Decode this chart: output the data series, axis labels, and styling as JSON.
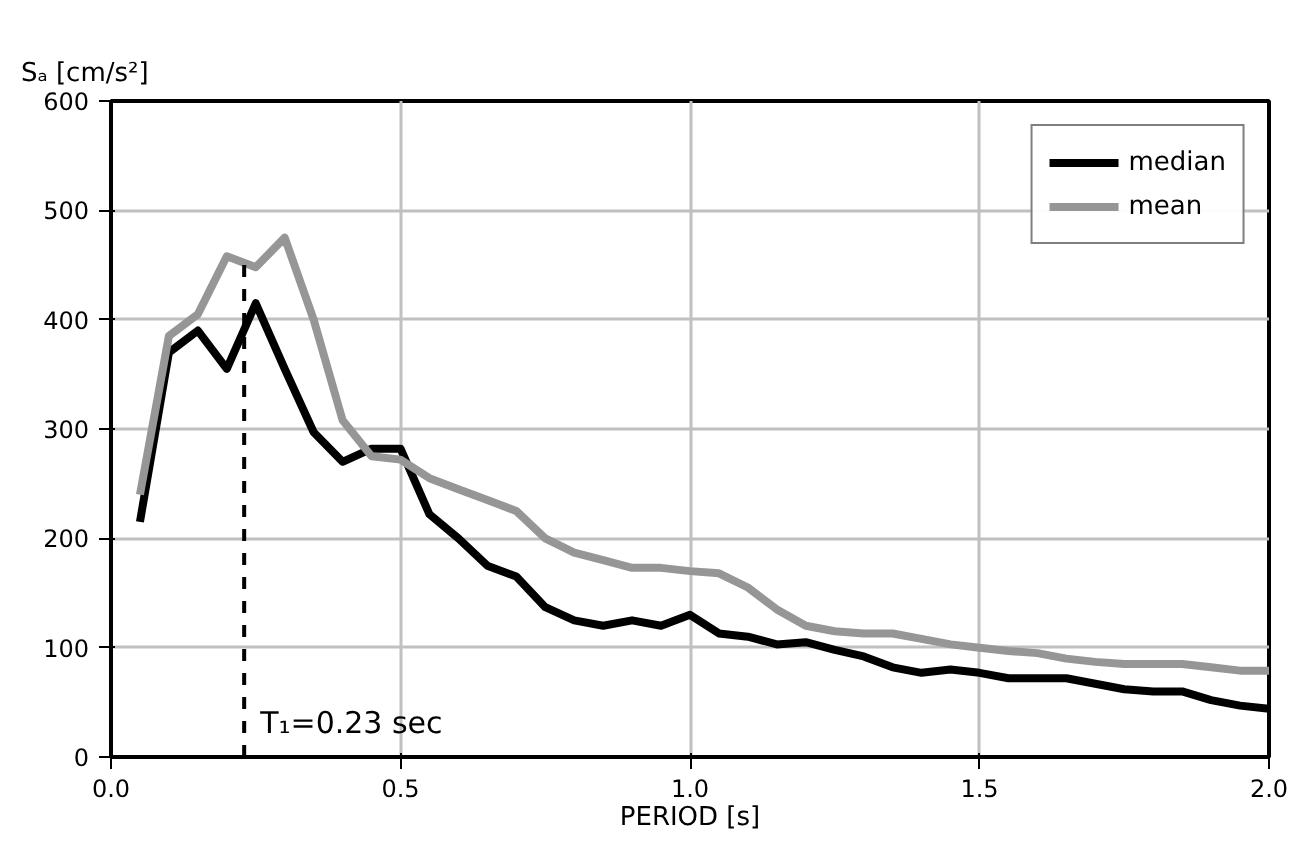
{
  "chart_data": {
    "type": "line",
    "ylabel": "Sₐ [cm/s²]",
    "xlabel": "PERIOD [s]",
    "x": [
      0.05,
      0.1,
      0.15,
      0.2,
      0.25,
      0.3,
      0.35,
      0.4,
      0.45,
      0.5,
      0.55,
      0.6,
      0.65,
      0.7,
      0.75,
      0.8,
      0.85,
      0.9,
      0.95,
      1.0,
      1.05,
      1.1,
      1.15,
      1.2,
      1.25,
      1.3,
      1.35,
      1.4,
      1.45,
      1.5,
      1.55,
      1.6,
      1.65,
      1.7,
      1.75,
      1.8,
      1.85,
      1.9,
      1.95,
      2.0
    ],
    "series": [
      {
        "name": "median",
        "color": "#000000",
        "values": [
          215,
          370,
          390,
          355,
          415,
          355,
          297,
          270,
          282,
          282,
          222,
          200,
          175,
          165,
          137,
          125,
          120,
          125,
          120,
          130,
          113,
          110,
          103,
          105,
          98,
          92,
          82,
          77,
          80,
          77,
          72,
          72,
          72,
          67,
          62,
          60,
          60,
          52,
          47,
          44
        ]
      },
      {
        "name": "mean",
        "color": "#969696",
        "values": [
          240,
          385,
          405,
          458,
          448,
          475,
          400,
          308,
          275,
          272,
          255,
          245,
          235,
          225,
          200,
          187,
          180,
          173,
          173,
          170,
          168,
          155,
          135,
          120,
          115,
          113,
          113,
          108,
          103,
          100,
          97,
          95,
          90,
          87,
          85,
          85,
          85,
          82,
          79,
          79
        ]
      }
    ],
    "xlim": [
      0,
      2.0
    ],
    "ylim": [
      0,
      600
    ],
    "xticks": [
      {
        "value": 0,
        "label": "0.0"
      },
      {
        "value": 0.5,
        "label": "0.5"
      },
      {
        "value": 1.0,
        "label": "1.0"
      },
      {
        "value": 1.5,
        "label": "1.5"
      },
      {
        "value": 2.0,
        "label": "2.0"
      }
    ],
    "yticks": [
      0,
      100,
      200,
      300,
      400,
      500,
      600
    ],
    "ref_lines": [
      {
        "axis": "x",
        "value": 0.23,
        "label": "T₁=0.23 sec",
        "line_style": "dashed",
        "color": "#000000"
      }
    ],
    "grid": true,
    "legend": "top right",
    "marker": "none",
    "line_style": "solid"
  }
}
